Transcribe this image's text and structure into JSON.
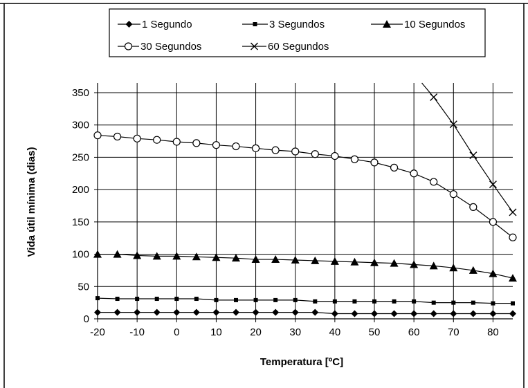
{
  "chart_data": {
    "type": "line",
    "xlabel": "Temperatura [ºC]",
    "ylabel": "Vida útil mínima (dias)",
    "xlim": [
      -20,
      85
    ],
    "ylim": [
      0,
      350
    ],
    "x_ticks": [
      "-20",
      "-10",
      "0",
      "10",
      "20",
      "30",
      "40",
      "50",
      "60",
      "70",
      "80"
    ],
    "y_ticks": [
      "0",
      "50",
      "100",
      "150",
      "200",
      "250",
      "300",
      "350"
    ],
    "grid": true,
    "legend_position": "top",
    "series": [
      {
        "name": "1 Segundo",
        "marker": "diamond",
        "x": [
          -20,
          -15,
          -10,
          -5,
          0,
          5,
          10,
          15,
          20,
          25,
          30,
          35,
          40,
          45,
          50,
          55,
          60,
          65,
          70,
          75,
          80,
          85
        ],
        "values": [
          10,
          10,
          10,
          10,
          10,
          10,
          10,
          10,
          10,
          10,
          10,
          10,
          8,
          8,
          8,
          8,
          8,
          8,
          8,
          8,
          8,
          8
        ]
      },
      {
        "name": "3 Segundos",
        "marker": "square",
        "x": [
          -20,
          -15,
          -10,
          -5,
          0,
          5,
          10,
          15,
          20,
          25,
          30,
          35,
          40,
          45,
          50,
          55,
          60,
          65,
          70,
          75,
          80,
          85
        ],
        "values": [
          32,
          31,
          31,
          31,
          31,
          31,
          29,
          29,
          29,
          29,
          29,
          27,
          27,
          27,
          27,
          27,
          27,
          25,
          25,
          25,
          24,
          24
        ]
      },
      {
        "name": "10 Segundos",
        "marker": "triangle",
        "x": [
          -20,
          -15,
          -10,
          -5,
          0,
          5,
          10,
          15,
          20,
          25,
          30,
          35,
          40,
          45,
          50,
          55,
          60,
          65,
          70,
          75,
          80,
          85
        ],
        "values": [
          100,
          100,
          98,
          97,
          97,
          96,
          95,
          94,
          92,
          92,
          91,
          90,
          89,
          88,
          87,
          86,
          84,
          82,
          79,
          75,
          70,
          63
        ]
      },
      {
        "name": "30 Segundos",
        "marker": "circle",
        "x": [
          -20,
          -15,
          -10,
          -5,
          0,
          5,
          10,
          15,
          20,
          25,
          30,
          35,
          40,
          45,
          50,
          55,
          60,
          65,
          70,
          75,
          80,
          85
        ],
        "values": [
          284,
          282,
          279,
          277,
          274,
          272,
          269,
          267,
          264,
          261,
          259,
          255,
          252,
          247,
          242,
          234,
          225,
          212,
          193,
          173,
          150,
          126
        ]
      },
      {
        "name": "60 Segundos",
        "marker": "x",
        "x": [
          62,
          65,
          70,
          75,
          80,
          85
        ],
        "values": [
          365,
          343,
          301,
          253,
          208,
          165
        ],
        "marked": [
          false,
          true,
          true,
          true,
          true,
          true
        ]
      }
    ]
  }
}
